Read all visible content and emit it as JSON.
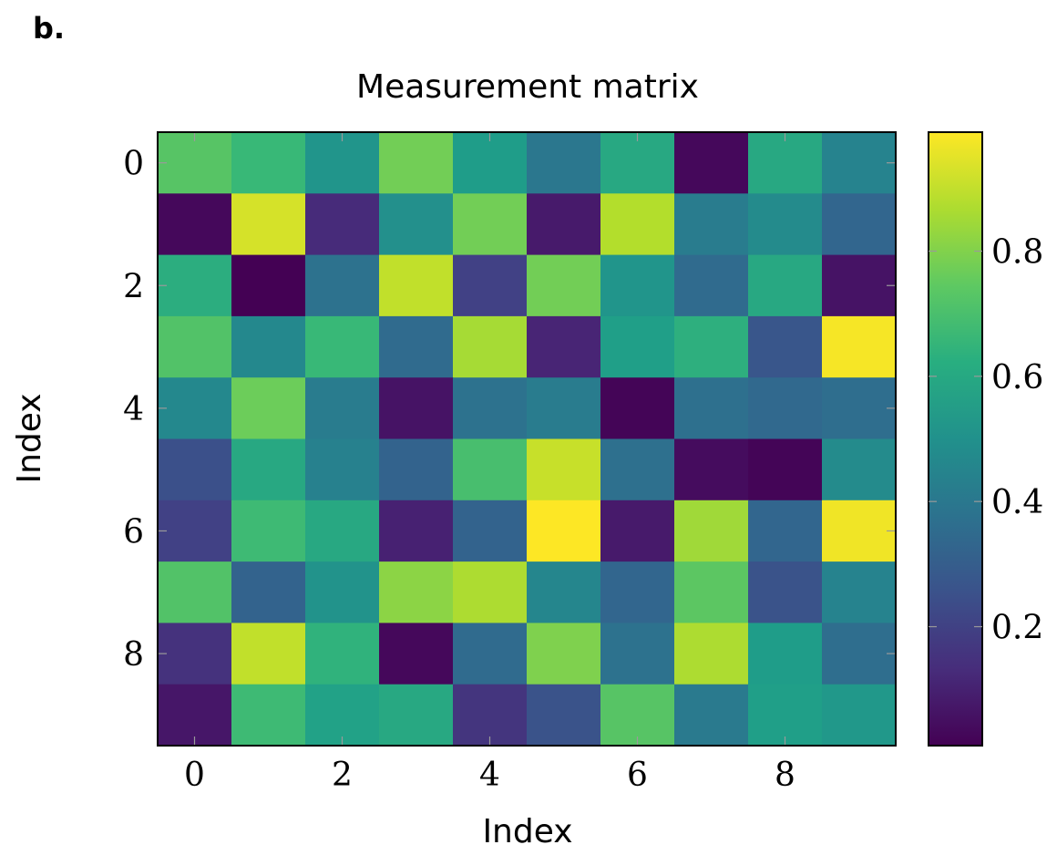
{
  "panel_label": "b.",
  "chart_data": {
    "type": "heatmap",
    "title": "Measurement matrix",
    "xlabel": "Index",
    "ylabel": "Index",
    "x_ticks": [
      0,
      2,
      4,
      6,
      8
    ],
    "y_ticks": [
      0,
      2,
      4,
      6,
      8
    ],
    "colorbar": {
      "ticks": [
        0.2,
        0.4,
        0.6,
        0.8
      ],
      "range": [
        0.01,
        0.99
      ],
      "colormap": "viridis"
    },
    "grid": false,
    "values": [
      [
        0.73,
        0.67,
        0.52,
        0.78,
        0.55,
        0.4,
        0.6,
        0.03,
        0.6,
        0.45
      ],
      [
        0.03,
        0.93,
        0.13,
        0.5,
        0.78,
        0.08,
        0.88,
        0.42,
        0.48,
        0.33
      ],
      [
        0.62,
        0.0,
        0.38,
        0.9,
        0.2,
        0.78,
        0.52,
        0.35,
        0.6,
        0.06
      ],
      [
        0.72,
        0.47,
        0.67,
        0.35,
        0.86,
        0.11,
        0.56,
        0.63,
        0.27,
        0.98
      ],
      [
        0.47,
        0.77,
        0.42,
        0.06,
        0.38,
        0.42,
        0.02,
        0.37,
        0.34,
        0.36
      ],
      [
        0.25,
        0.6,
        0.44,
        0.32,
        0.7,
        0.91,
        0.37,
        0.04,
        0.02,
        0.48
      ],
      [
        0.2,
        0.68,
        0.6,
        0.1,
        0.32,
        0.99,
        0.08,
        0.85,
        0.33,
        0.97
      ],
      [
        0.72,
        0.32,
        0.51,
        0.82,
        0.87,
        0.46,
        0.33,
        0.74,
        0.26,
        0.45
      ],
      [
        0.15,
        0.9,
        0.64,
        0.03,
        0.35,
        0.8,
        0.38,
        0.87,
        0.55,
        0.36
      ],
      [
        0.07,
        0.68,
        0.57,
        0.6,
        0.16,
        0.26,
        0.73,
        0.41,
        0.56,
        0.53
      ]
    ]
  }
}
